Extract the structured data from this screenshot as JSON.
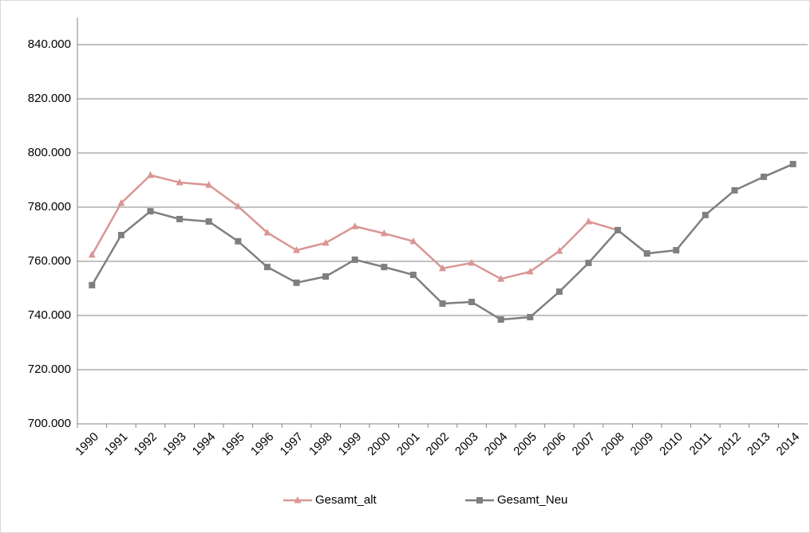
{
  "chart_data": {
    "type": "line",
    "categories": [
      "1990",
      "1991",
      "1992",
      "1993",
      "1994",
      "1995",
      "1996",
      "1997",
      "1998",
      "1999",
      "2000",
      "2001",
      "2002",
      "2003",
      "2004",
      "2005",
      "2006",
      "2007",
      "2008",
      "2009",
      "2010",
      "2011",
      "2012",
      "2013",
      "2014"
    ],
    "series": [
      {
        "name": "Gesamt_alt",
        "color": "#d99694",
        "marker": "triangle",
        "values": [
          762400,
          781500,
          791800,
          789100,
          788200,
          780300,
          770600,
          764100,
          766800,
          772900,
          770300,
          767400,
          757400,
          759400,
          753500,
          756200,
          763800,
          774700,
          771500,
          null,
          null,
          null,
          null,
          null,
          null
        ]
      },
      {
        "name": "Gesamt_Neu",
        "color": "#7f7f7f",
        "marker": "square",
        "values": [
          751200,
          769700,
          778500,
          775600,
          774700,
          767400,
          757900,
          752100,
          754400,
          760600,
          757900,
          755000,
          744400,
          745000,
          738500,
          739400,
          748800,
          759400,
          771500,
          762900,
          764100,
          777100,
          786200,
          791200,
          795900
        ]
      }
    ],
    "ylim": [
      700000,
      850000
    ],
    "yticks": [
      {
        "value": 700000,
        "label": "700.000"
      },
      {
        "value": 720000,
        "label": "720.000"
      },
      {
        "value": 740000,
        "label": "740.000"
      },
      {
        "value": 760000,
        "label": "760.000"
      },
      {
        "value": 780000,
        "label": "780.000"
      },
      {
        "value": 800000,
        "label": "800.000"
      },
      {
        "value": 820000,
        "label": "820.000"
      },
      {
        "value": 840000,
        "label": "840.000"
      }
    ],
    "grid": true,
    "legend": "bottom"
  }
}
